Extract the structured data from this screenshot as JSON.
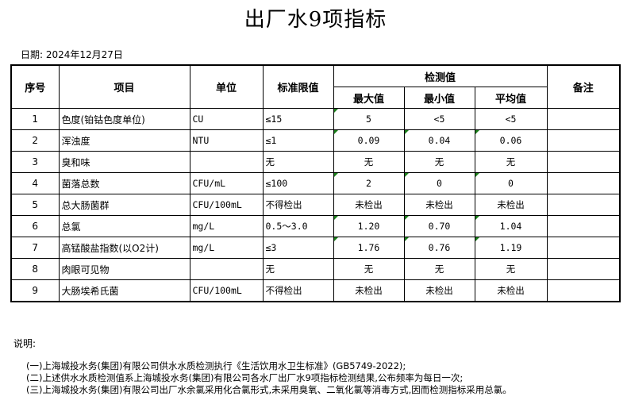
{
  "title": "出厂水9项指标",
  "date": "日期: 2024年12月27日",
  "headers": {
    "no": "序号",
    "item": "项目",
    "unit": "单位",
    "limit": "标准限值",
    "detect": "检测值",
    "max": "最大值",
    "min": "最小值",
    "avg": "平均值",
    "remark": "备注"
  },
  "rows": [
    {
      "no": "1",
      "item": "色度(铂钴色度单位)",
      "unit": "CU",
      "limit": "≤15",
      "max": "5",
      "min": "<5",
      "avg": "<5",
      "flags": [
        1,
        0,
        0
      ]
    },
    {
      "no": "2",
      "item": "浑浊度",
      "unit": "NTU",
      "limit": "≤1",
      "max": "0.09",
      "min": "0.04",
      "avg": "0.06",
      "flags": [
        1,
        1,
        1
      ]
    },
    {
      "no": "3",
      "item": "臭和味",
      "unit": "",
      "limit": "无",
      "max": "无",
      "min": "无",
      "avg": "无",
      "flags": [
        0,
        0,
        0
      ]
    },
    {
      "no": "4",
      "item": "菌落总数",
      "unit": "CFU/mL",
      "limit": "≤100",
      "max": "2",
      "min": "0",
      "avg": "0",
      "flags": [
        1,
        1,
        1
      ]
    },
    {
      "no": "5",
      "item": "总大肠菌群",
      "unit": "CFU/100mL",
      "limit": "不得检出",
      "max": "未检出",
      "min": "未检出",
      "avg": "未检出",
      "flags": [
        0,
        0,
        0
      ]
    },
    {
      "no": "6",
      "item": "总氯",
      "unit": "mg/L",
      "limit": "0.5～3.0",
      "max": "1.20",
      "min": "0.70",
      "avg": "1.04",
      "flags": [
        1,
        1,
        1
      ]
    },
    {
      "no": "7",
      "item": "高锰酸盐指数(以O2计)",
      "unit": "mg/L",
      "limit": "≤3",
      "max": "1.76",
      "min": "0.76",
      "avg": "1.19",
      "flags": [
        1,
        1,
        1
      ]
    },
    {
      "no": "8",
      "item": "肉眼可见物",
      "unit": "",
      "limit": "无",
      "max": "无",
      "min": "无",
      "avg": "无",
      "flags": [
        0,
        0,
        0
      ]
    },
    {
      "no": "9",
      "item": "大肠埃希氏菌",
      "unit": "CFU/100mL",
      "limit": "不得检出",
      "max": "未检出",
      "min": "未检出",
      "avg": "未检出",
      "flags": [
        0,
        0,
        0
      ]
    }
  ],
  "notes_heading": "说明:",
  "notes": [
    "(一)上海城投水务(集团)有限公司供水水质检测执行《生活饮用水卫生标准》(GB5749-2022);",
    "(二)上述供水水质检测值系上海城投水务(集团)有限公司各水厂出厂水9项指标检测结果,公布频率为每日一次;",
    "(三)上海城投水务(集团)有限公司出厂水余氯采用化合氯形式,未采用臭氧、二氧化氯等消毒方式,因而检测指标采用总氯。"
  ],
  "colors": {
    "cell_marker": "#1a7f1a"
  }
}
